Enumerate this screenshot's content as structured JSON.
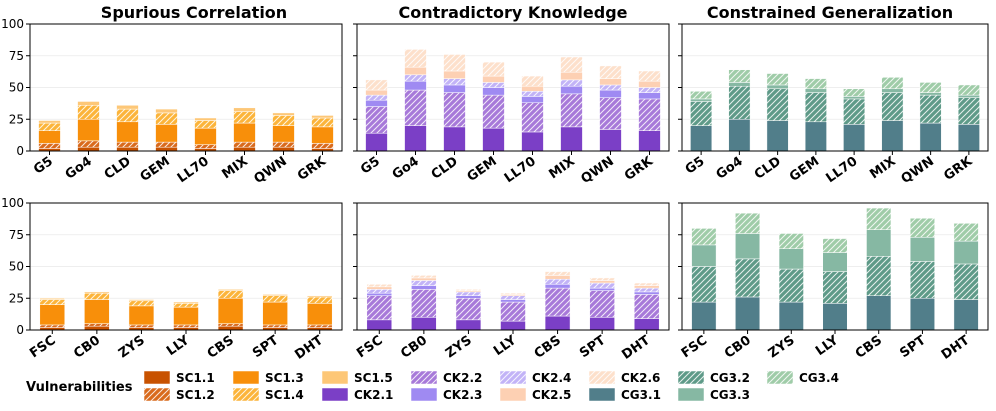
{
  "colors": {
    "SC1.1": "#c85200",
    "SC1.2": "#d96a1c",
    "SC1.3": "#f88f0a",
    "SC1.4": "#fcb43a",
    "SC1.5": "#fdc777",
    "CK2.1": "#7b3fc6",
    "CK2.2": "#a779d9",
    "CK2.3": "#9f8af2",
    "CK2.4": "#c2b3f7",
    "CK2.5": "#fdd0b3",
    "CK2.6": "#fde0cb",
    "CG3.1": "#517e8a",
    "CG3.2": "#5e9a88",
    "CG3.3": "#86b8a3",
    "CG3.4": "#9fcca8"
  },
  "hatched": [
    "SC1.2",
    "SC1.4",
    "CK2.2",
    "CK2.4",
    "CK2.6",
    "CG3.2",
    "CG3.4"
  ],
  "legend": {
    "title": "Vulnerabilities",
    "items": [
      "SC1.1",
      "SC1.2",
      "SC1.3",
      "SC1.4",
      "SC1.5",
      "CK2.1",
      "CK2.2",
      "CK2.3",
      "CK2.4",
      "CK2.5",
      "CK2.6",
      "CG3.1",
      "CG3.2",
      "CG3.3",
      "CG3.4"
    ]
  },
  "chart_data": [
    {
      "type": "bar",
      "stacked": true,
      "title": "Spurious Correlation",
      "ylim": [
        0,
        100
      ],
      "yticks": [
        0,
        25,
        50,
        75,
        100
      ],
      "categories": [
        "G5",
        "Go4",
        "CLD",
        "GEM",
        "LL70",
        "MIX",
        "QWN",
        "GRK"
      ],
      "series": [
        {
          "name": "SC1.1",
          "values": [
            2,
            3,
            3,
            3,
            2,
            3,
            3,
            2
          ]
        },
        {
          "name": "SC1.2",
          "values": [
            4,
            5,
            4,
            4,
            3,
            4,
            4,
            4
          ]
        },
        {
          "name": "SC1.3",
          "values": [
            10,
            17,
            16,
            14,
            13,
            15,
            13,
            13
          ]
        },
        {
          "name": "SC1.4",
          "values": [
            6,
            11,
            10,
            9,
            6,
            9,
            8,
            7
          ]
        },
        {
          "name": "SC1.5",
          "values": [
            2,
            3,
            3,
            3,
            2,
            3,
            2,
            2
          ]
        }
      ]
    },
    {
      "type": "bar",
      "stacked": true,
      "title": "Contradictory Knowledge",
      "ylim": [
        0,
        100
      ],
      "yticks": [
        0,
        25,
        50,
        75,
        100
      ],
      "categories": [
        "G5",
        "Go4",
        "CLD",
        "GEM",
        "LL70",
        "MIX",
        "QWN",
        "GRK"
      ],
      "series": [
        {
          "name": "CK2.1",
          "values": [
            14,
            20,
            19,
            18,
            15,
            19,
            17,
            16
          ]
        },
        {
          "name": "CK2.2",
          "values": [
            21,
            28,
            27,
            26,
            23,
            26,
            25,
            25
          ]
        },
        {
          "name": "CK2.3",
          "values": [
            5,
            7,
            6,
            6,
            5,
            6,
            6,
            5
          ]
        },
        {
          "name": "CK2.4",
          "values": [
            4,
            5,
            5,
            4,
            4,
            5,
            4,
            4
          ]
        },
        {
          "name": "CK2.5",
          "values": [
            4,
            6,
            6,
            5,
            4,
            6,
            5,
            5
          ]
        },
        {
          "name": "CK2.6",
          "values": [
            8,
            14,
            13,
            11,
            8,
            12,
            10,
            8
          ]
        }
      ]
    },
    {
      "type": "bar",
      "stacked": true,
      "title": "Constrained Generalization",
      "ylim": [
        0,
        100
      ],
      "yticks": [
        0,
        25,
        50,
        75,
        100
      ],
      "categories": [
        "G5",
        "Go4",
        "CLD",
        "GEM",
        "LL70",
        "MIX",
        "QWN",
        "GRK"
      ],
      "series": [
        {
          "name": "CG3.1",
          "values": [
            20,
            25,
            24,
            23,
            21,
            24,
            22,
            21
          ]
        },
        {
          "name": "CG3.2",
          "values": [
            19,
            26,
            25,
            23,
            20,
            22,
            22,
            21
          ]
        },
        {
          "name": "CG3.3",
          "values": [
            2,
            3,
            3,
            3,
            2,
            3,
            2,
            2
          ]
        },
        {
          "name": "CG3.4",
          "values": [
            6,
            10,
            9,
            8,
            6,
            9,
            8,
            8
          ]
        }
      ]
    },
    {
      "type": "bar",
      "stacked": true,
      "title": "",
      "ylim": [
        0,
        100
      ],
      "yticks": [
        0,
        25,
        50,
        75,
        100
      ],
      "categories": [
        "FSC",
        "CB0",
        "ZYS",
        "LLY",
        "CBS",
        "SPT",
        "DHT"
      ],
      "series": [
        {
          "name": "SC1.1",
          "values": [
            2,
            3,
            2,
            2,
            3,
            2,
            2
          ]
        },
        {
          "name": "SC1.2",
          "values": [
            2,
            2,
            2,
            2,
            2,
            2,
            2
          ]
        },
        {
          "name": "SC1.3",
          "values": [
            16,
            19,
            15,
            14,
            20,
            18,
            17
          ]
        },
        {
          "name": "SC1.4",
          "values": [
            4,
            5,
            4,
            3,
            6,
            5,
            5
          ]
        },
        {
          "name": "SC1.5",
          "values": [
            1,
            1,
            1,
            1,
            1,
            1,
            1
          ]
        }
      ]
    },
    {
      "type": "bar",
      "stacked": true,
      "title": "",
      "ylim": [
        0,
        100
      ],
      "yticks": [
        0,
        25,
        50,
        75,
        100
      ],
      "categories": [
        "FSC",
        "CB0",
        "ZYS",
        "LLY",
        "CBS",
        "SPT",
        "DHT"
      ],
      "series": [
        {
          "name": "CK2.1",
          "values": [
            8,
            10,
            8,
            7,
            11,
            10,
            9
          ]
        },
        {
          "name": "CK2.2",
          "values": [
            19,
            22,
            17,
            15,
            22,
            21,
            19
          ]
        },
        {
          "name": "CK2.3",
          "values": [
            2,
            3,
            2,
            2,
            3,
            2,
            2
          ]
        },
        {
          "name": "CK2.4",
          "values": [
            3,
            4,
            3,
            3,
            4,
            4,
            3
          ]
        },
        {
          "name": "CK2.5",
          "values": [
            2,
            2,
            1,
            1,
            3,
            2,
            2
          ]
        },
        {
          "name": "CK2.6",
          "values": [
            2,
            2,
            1,
            1,
            3,
            2,
            2
          ]
        }
      ]
    },
    {
      "type": "bar",
      "stacked": true,
      "title": "",
      "ylim": [
        0,
        100
      ],
      "yticks": [
        0,
        25,
        50,
        75,
        100
      ],
      "categories": [
        "FSC",
        "CB0",
        "ZYS",
        "LLY",
        "CBS",
        "SPT",
        "DHT"
      ],
      "series": [
        {
          "name": "CG3.1",
          "values": [
            22,
            26,
            22,
            21,
            27,
            25,
            24
          ]
        },
        {
          "name": "CG3.2",
          "values": [
            28,
            30,
            26,
            25,
            31,
            29,
            28
          ]
        },
        {
          "name": "CG3.3",
          "values": [
            17,
            20,
            16,
            15,
            21,
            19,
            18
          ]
        },
        {
          "name": "CG3.4",
          "values": [
            13,
            16,
            12,
            11,
            17,
            15,
            14
          ]
        }
      ]
    }
  ]
}
